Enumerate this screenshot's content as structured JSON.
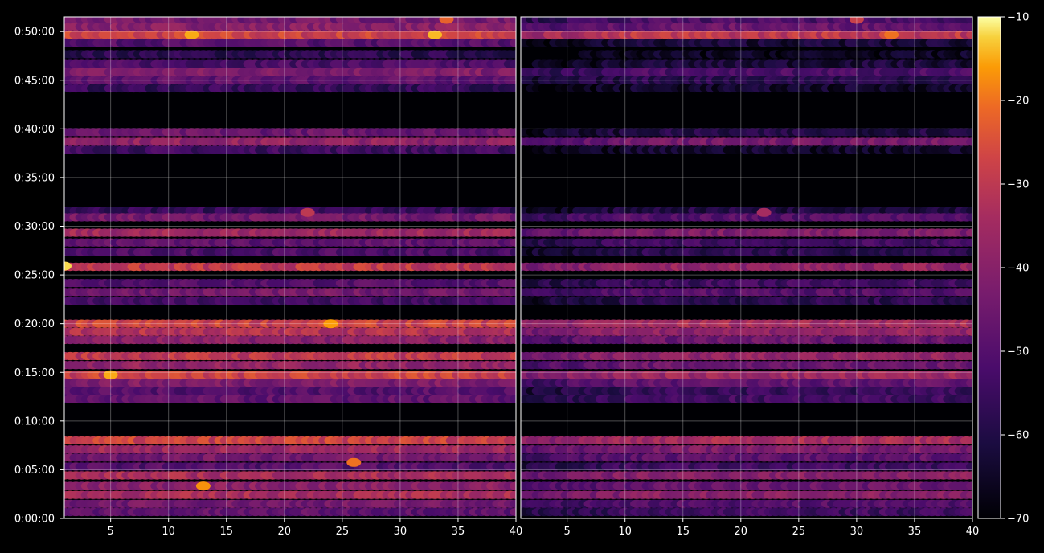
{
  "chart_data": {
    "type": "heatmap",
    "title": "",
    "xlabel": "",
    "ylabel": "",
    "background": "#000000",
    "grid": true,
    "colormap": "inferno",
    "panels": [
      {
        "name": "left",
        "xlim": [
          1,
          40
        ],
        "x_ticks": [
          5,
          10,
          15,
          20,
          25,
          30,
          35,
          40
        ],
        "x_tick_labels": [
          "5",
          "10",
          "15",
          "20",
          "25",
          "30",
          "35",
          "40"
        ]
      },
      {
        "name": "right",
        "xlim": [
          1,
          40
        ],
        "x_ticks": [
          5,
          10,
          15,
          20,
          25,
          30,
          35,
          40
        ],
        "x_tick_labels": [
          "5",
          "10",
          "15",
          "20",
          "25",
          "30",
          "35",
          "40"
        ]
      }
    ],
    "y_axis": {
      "unit": "seconds",
      "ylim": [
        0,
        3090
      ],
      "ticks": [
        0,
        300,
        600,
        900,
        1200,
        1500,
        1800,
        2100,
        2400,
        2700,
        3000
      ],
      "tick_labels": [
        "0:00:00",
        "0:05:00",
        "0:10:00",
        "0:15:00",
        "0:20:00",
        "0:25:00",
        "0:30:00",
        "0:35:00",
        "0:40:00",
        "0:45:00",
        "0:50:00"
      ]
    },
    "colorbar": {
      "range": [
        -70,
        -10
      ],
      "ticks": [
        -10,
        -20,
        -30,
        -40,
        -50,
        -60,
        -70
      ],
      "tick_labels": [
        "−10",
        "−20",
        "−30",
        "−40",
        "−50",
        "−60",
        "−70"
      ]
    },
    "bands": [
      {
        "t": 2980,
        "left": -28,
        "right": -30
      },
      {
        "t": 3030,
        "left": -40,
        "right": -46
      },
      {
        "t": 3075,
        "left": -44,
        "right": -52
      },
      {
        "t": 2930,
        "left": -50,
        "right": -62
      },
      {
        "t": 2860,
        "left": -58,
        "right": -66
      },
      {
        "t": 2800,
        "left": -52,
        "right": -62
      },
      {
        "t": 2750,
        "left": -42,
        "right": -52
      },
      {
        "t": 2700,
        "left": -48,
        "right": -58
      },
      {
        "t": 2650,
        "left": -56,
        "right": -64
      },
      {
        "t": 2380,
        "left": -46,
        "right": -60
      },
      {
        "t": 2320,
        "left": -38,
        "right": -44
      },
      {
        "t": 2270,
        "left": -54,
        "right": -64
      },
      {
        "t": 1895,
        "left": -56,
        "right": -60
      },
      {
        "t": 1855,
        "left": -44,
        "right": -50
      },
      {
        "t": 1760,
        "left": -36,
        "right": -42
      },
      {
        "t": 1700,
        "left": -48,
        "right": -54
      },
      {
        "t": 1640,
        "left": -52,
        "right": -58
      },
      {
        "t": 1550,
        "left": -30,
        "right": -38
      },
      {
        "t": 1450,
        "left": -50,
        "right": -54
      },
      {
        "t": 1395,
        "left": -44,
        "right": -50
      },
      {
        "t": 1340,
        "left": -54,
        "right": -58
      },
      {
        "t": 1200,
        "left": -28,
        "right": -34
      },
      {
        "t": 1150,
        "left": -32,
        "right": -38
      },
      {
        "t": 1100,
        "left": -40,
        "right": -46
      },
      {
        "t": 1000,
        "left": -30,
        "right": -38
      },
      {
        "t": 945,
        "left": -38,
        "right": -46
      },
      {
        "t": 885,
        "left": -28,
        "right": -36
      },
      {
        "t": 835,
        "left": -42,
        "right": -48
      },
      {
        "t": 785,
        "left": -50,
        "right": -56
      },
      {
        "t": 735,
        "left": -48,
        "right": -54
      },
      {
        "t": 480,
        "left": -28,
        "right": -34
      },
      {
        "t": 425,
        "left": -36,
        "right": -42
      },
      {
        "t": 375,
        "left": -44,
        "right": -48
      },
      {
        "t": 320,
        "left": -50,
        "right": -54
      },
      {
        "t": 265,
        "left": -34,
        "right": -40
      },
      {
        "t": 200,
        "left": -40,
        "right": -46
      },
      {
        "t": 145,
        "left": -34,
        "right": -40
      },
      {
        "t": 90,
        "left": -44,
        "right": -50
      },
      {
        "t": 40,
        "left": -48,
        "right": -54
      }
    ],
    "hot_spots": [
      {
        "panel": "left",
        "x": 33,
        "t": 2980,
        "value": -14
      },
      {
        "panel": "left",
        "x": 12,
        "t": 2980,
        "value": -15
      },
      {
        "panel": "left",
        "x": 1,
        "t": 1555,
        "value": -12
      },
      {
        "panel": "left",
        "x": 22,
        "t": 1885,
        "value": -30
      },
      {
        "panel": "right",
        "x": 22,
        "t": 1885,
        "value": -34
      },
      {
        "panel": "left",
        "x": 5,
        "t": 885,
        "value": -15
      },
      {
        "panel": "left",
        "x": 24,
        "t": 1200,
        "value": -16
      },
      {
        "panel": "left",
        "x": 13,
        "t": 200,
        "value": -17
      },
      {
        "panel": "left",
        "x": 26,
        "t": 345,
        "value": -20
      },
      {
        "panel": "right",
        "x": 33,
        "t": 2980,
        "value": -20
      },
      {
        "panel": "left",
        "x": 34,
        "t": 3075,
        "value": -22
      },
      {
        "panel": "right",
        "x": 30,
        "t": 3075,
        "value": -28
      }
    ]
  }
}
